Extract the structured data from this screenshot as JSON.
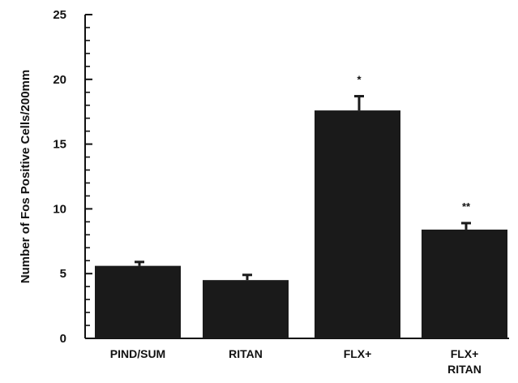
{
  "chart_data": {
    "type": "bar",
    "title": "",
    "xlabel": "",
    "ylabel": "Number of Fos Positive Cells/200mm",
    "ylim": [
      0,
      25
    ],
    "yticks": [
      "0",
      "5",
      "10",
      "15",
      "20",
      "25"
    ],
    "minor_ticks_per_major": 4,
    "grid": false,
    "categories": [
      [
        "PIND/SUM"
      ],
      [
        "RITAN"
      ],
      [
        "FLX+"
      ],
      [
        "FLX+",
        "RITAN"
      ]
    ],
    "values": [
      5.6,
      4.5,
      17.6,
      8.4
    ],
    "errors": [
      0.3,
      0.4,
      1.1,
      0.5
    ],
    "annotations": [
      "",
      "",
      "*",
      "**"
    ],
    "colors": {
      "bar": "#1a1a1a",
      "axis": "#111111"
    }
  }
}
